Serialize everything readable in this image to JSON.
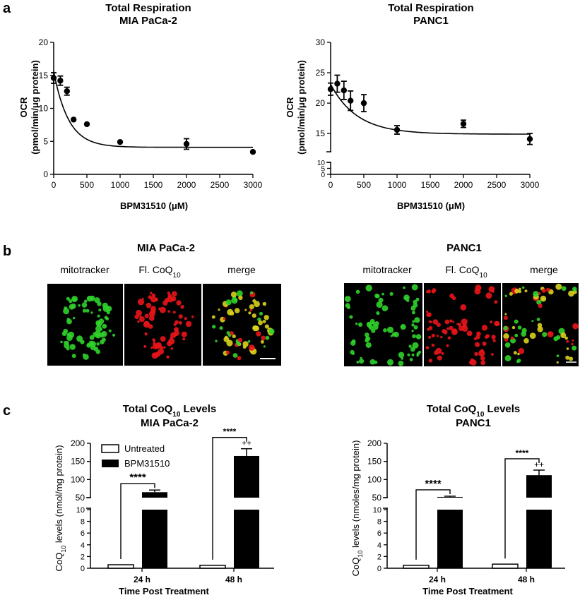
{
  "panel_labels": {
    "a": "a",
    "b": "b",
    "c": "c"
  },
  "colors": {
    "mito_green": "#2fd12a",
    "coq_red": "#e8141a",
    "merge_yellow": "#d9d21c",
    "bg_black": "#000000",
    "bar_black": "#000000",
    "bar_white": "#ffffff"
  },
  "panel_b": {
    "left": {
      "title": "MIA PaCa-2",
      "channels": [
        "mitotracker",
        "Fl. CoQ",
        "merge"
      ],
      "sub": "10"
    },
    "right": {
      "title": "PANC1",
      "channels": [
        "mitotracker",
        "Fl. CoQ",
        "merge"
      ],
      "sub": "10"
    },
    "images": [
      {
        "name": "mia-mitotracker-image",
        "hue": "green"
      },
      {
        "name": "mia-coq-image",
        "hue": "red"
      },
      {
        "name": "mia-merge-image",
        "hue": "merge"
      },
      {
        "name": "panc1-mitotracker-image",
        "hue": "green"
      },
      {
        "name": "panc1-coq-image",
        "hue": "red"
      },
      {
        "name": "panc1-merge-image",
        "hue": "merge"
      }
    ]
  },
  "chart_data": [
    {
      "id": "a-left",
      "type": "scatter",
      "title": "Total Respiration",
      "subtitle": "MIA PaCa-2",
      "xlabel": "BPM31510 (μM)",
      "ylabel_line1": "OCR",
      "ylabel_line2": "(pmol/min/μg protein)",
      "xlim": [
        0,
        3000
      ],
      "ylim": [
        0,
        20
      ],
      "xticks": [
        0,
        500,
        1000,
        1500,
        2000,
        2500,
        3000
      ],
      "yticks": [
        0,
        5,
        10,
        15,
        20
      ],
      "points": [
        {
          "x": 0,
          "y": 14.6,
          "err": 0.8
        },
        {
          "x": 100,
          "y": 14.2,
          "err": 0.7
        },
        {
          "x": 200,
          "y": 12.6,
          "err": 0.6
        },
        {
          "x": 300,
          "y": 8.3,
          "err": 0
        },
        {
          "x": 500,
          "y": 7.6,
          "err": 0
        },
        {
          "x": 1000,
          "y": 4.9,
          "err": 0
        },
        {
          "x": 2000,
          "y": 4.6,
          "err": 0.8
        },
        {
          "x": 3000,
          "y": 3.4,
          "err": 0
        }
      ],
      "fit": {
        "bottom": 4.1,
        "top": 15.6,
        "k": 0.0045
      }
    },
    {
      "id": "a-right",
      "type": "scatter",
      "title": "Total Respiration",
      "subtitle": "PANC1",
      "xlabel": "BPM31510 (μM)",
      "ylabel_line1": "OCR",
      "ylabel_line2": "(pmol/min/μg protein)",
      "xlim": [
        0,
        3000
      ],
      "broken_axis": {
        "lower_ticks": [
          0,
          5,
          10
        ],
        "upper_ylim": [
          12,
          30
        ],
        "upper_ticks": [
          15,
          20,
          25,
          30
        ]
      },
      "xticks": [
        0,
        500,
        1000,
        1500,
        2000,
        2500,
        3000
      ],
      "points": [
        {
          "x": 0,
          "y": 22.3,
          "err": 1.0
        },
        {
          "x": 100,
          "y": 23.2,
          "err": 1.4
        },
        {
          "x": 200,
          "y": 22.1,
          "err": 1.5
        },
        {
          "x": 300,
          "y": 20.4,
          "err": 1.6
        },
        {
          "x": 500,
          "y": 20.0,
          "err": 1.4
        },
        {
          "x": 1000,
          "y": 15.6,
          "err": 0.7
        },
        {
          "x": 2000,
          "y": 16.6,
          "err": 0.6
        },
        {
          "x": 3000,
          "y": 14.1,
          "err": 0.9
        }
      ],
      "fit": {
        "bottom": 14.9,
        "top": 23.1,
        "k": 0.0025
      }
    },
    {
      "id": "c-left",
      "type": "bar",
      "title": "Total CoQ",
      "title_sub": "10",
      "title_end": " Levels",
      "subtitle": "MIA PaCa-2",
      "ylabel_pre": "CoQ",
      "ylabel_sub": "10",
      "ylabel_post": " levels (nmol/mg protein)",
      "xlabel": "Time Post Treatment",
      "categories": [
        "24 h",
        "48 h"
      ],
      "series": [
        {
          "name": "Untreated",
          "values": [
            0.6,
            0.5
          ],
          "errors": [
            0.05,
            0.04
          ]
        },
        {
          "name": "BPM31510",
          "values": [
            65,
            165
          ],
          "errors": [
            6,
            20
          ]
        }
      ],
      "broken_axis": {
        "lower_ticks": [
          0,
          2,
          4,
          6,
          8,
          10
        ],
        "upper_ylim": [
          50,
          200
        ],
        "upper_ticks": [
          50,
          100,
          150,
          200
        ]
      },
      "significance": [
        "****",
        "****"
      ],
      "plus_marks": [
        "",
        "++"
      ]
    },
    {
      "id": "c-right",
      "type": "bar",
      "title": "Total CoQ",
      "title_sub": "10",
      "title_end": " Levels",
      "subtitle": "PANC1",
      "ylabel_pre": "CoQ",
      "ylabel_sub": "10",
      "ylabel_post": " levels (nmoles/mg protein)",
      "xlabel": "Time Post Treatment",
      "categories": [
        "24 h",
        "48 h"
      ],
      "series": [
        {
          "name": "Untreated",
          "values": [
            0.5,
            0.7
          ],
          "errors": [
            0.04,
            0.05
          ]
        },
        {
          "name": "BPM31510",
          "values": [
            52,
            112
          ],
          "errors": [
            2,
            14
          ]
        }
      ],
      "broken_axis": {
        "lower_ticks": [
          0,
          2,
          4,
          6,
          8,
          10
        ],
        "upper_ylim": [
          50,
          200
        ],
        "upper_ticks": [
          50,
          100,
          150,
          200
        ]
      },
      "significance": [
        "****",
        "****"
      ],
      "plus_marks": [
        "",
        "++"
      ]
    }
  ]
}
